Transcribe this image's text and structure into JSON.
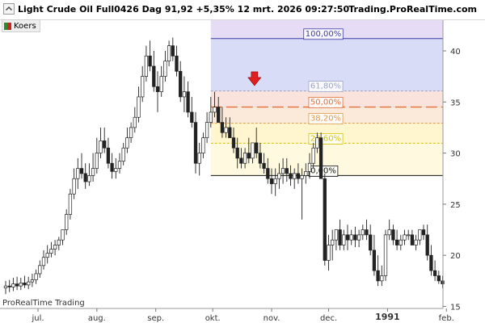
{
  "header": {
    "title": "Light Crude Oil Full0426 Dag 91,92 +5,35% 12 mrt. 2026 09:27:50",
    "brand": "Trading.ProRealTime.com",
    "legend_label": "Koers"
  },
  "footer": {
    "brand": "ProRealTime Trading"
  },
  "colors": {
    "up": "#2e8b2e",
    "down": "#cc2222",
    "neutral": "#222222",
    "f100": "#3b3ba8",
    "f618": "#9aa3c9",
    "f50": "#e0703a",
    "f382": "#e09a4a",
    "f236": "#d4c200",
    "f0": "#111111",
    "arrow": "#e02020"
  },
  "chart_data": {
    "type": "candlestick",
    "title": "Light Crude Oil Full0426 Dag 91,92 +5,35% 12 mrt. 2026 09:27:50",
    "ylabel": "",
    "xlabel": "",
    "ylim": [
      14.8,
      43.0
    ],
    "yticks": [
      "15",
      "20",
      "25",
      "30",
      "35",
      "40"
    ],
    "ytick_values": [
      15,
      20,
      25,
      30,
      35,
      40
    ],
    "xticks": [
      "jul.",
      "aug.",
      "sep.",
      "okt.",
      "nov.",
      "dec.",
      "1991",
      "feb."
    ],
    "xtick_days": [
      0,
      31,
      62,
      92,
      123,
      153,
      184,
      215
    ],
    "bold_xtick": "1991",
    "grid": false,
    "fibonacci": {
      "high": 41.2,
      "low": 27.8,
      "start_day": 108,
      "levels": [
        {
          "label": "100,00%",
          "value": 41.2,
          "color_key": "f100"
        },
        {
          "label": "61,80%",
          "value": 36.08,
          "color_key": "f618"
        },
        {
          "label": "50,00%",
          "value": 34.5,
          "color_key": "f50"
        },
        {
          "label": "38,20%",
          "value": 32.92,
          "color_key": "f382"
        },
        {
          "label": "23,60%",
          "value": 30.96,
          "color_key": "f236"
        },
        {
          "label": "0,00%",
          "value": 27.8,
          "color_key": "f0"
        }
      ]
    },
    "marker": {
      "type": "down-arrow",
      "day": 131,
      "value": 37.0
    },
    "series": [
      {
        "days": [
          0,
          2,
          4,
          6,
          8,
          10,
          12,
          14,
          16,
          18,
          20,
          22,
          24,
          26,
          28,
          30,
          32,
          34,
          36,
          38,
          40,
          42,
          44,
          46,
          48,
          50,
          52,
          54,
          56,
          58,
          60,
          62,
          64,
          66,
          68,
          70,
          72,
          74,
          76,
          78,
          80,
          82,
          84,
          86,
          88,
          90,
          92,
          94,
          96,
          98,
          100,
          102,
          104,
          106,
          108,
          110,
          112,
          114,
          116,
          118,
          120,
          122,
          124,
          126,
          128,
          130,
          132,
          134,
          136,
          138,
          140,
          142,
          144,
          146,
          148,
          150,
          152,
          154,
          156,
          158,
          160,
          162,
          164,
          166,
          168,
          170,
          172,
          174,
          176,
          178,
          180,
          182,
          184,
          186,
          188,
          190,
          192,
          194,
          196,
          198,
          200,
          202,
          204,
          206,
          208,
          210,
          212,
          214,
          216,
          218,
          220,
          222,
          224,
          226,
          228,
          230
        ],
        "open": [
          16.8,
          17.0,
          16.9,
          17.2,
          17.0,
          17.3,
          17.1,
          17.4,
          17.6,
          18.2,
          19.0,
          19.8,
          20.2,
          20.6,
          21.0,
          21.5,
          22.5,
          24.0,
          26.0,
          27.5,
          28.5,
          28.0,
          27.2,
          27.8,
          28.5,
          30.0,
          31.2,
          30.5,
          29.0,
          28.2,
          28.5,
          29.2,
          30.5,
          31.5,
          32.5,
          33.5,
          35.5,
          37.5,
          39.5,
          38.5,
          36.5,
          36.0,
          37.5,
          39.0,
          40.5,
          39.5,
          38.0,
          35.5,
          36.0,
          34.0,
          33.0,
          29.0,
          30.0,
          31.5,
          33.0,
          34.0,
          34.5,
          33.0,
          32.0,
          32.5,
          31.5,
          30.5,
          29.5,
          29.0,
          30.0,
          29.5,
          31.0,
          30.0,
          29.0,
          28.5,
          27.5,
          27.0,
          27.5,
          28.0,
          28.5,
          28.0,
          27.5,
          28.0,
          27.5,
          27.8,
          28.2,
          29.0,
          30.5,
          31.5,
          27.5,
          19.5,
          21.0,
          21.5,
          22.5,
          21.0,
          22.0,
          21.5,
          22.0,
          21.5,
          22.0,
          22.5,
          22.0,
          20.5,
          18.5,
          17.5,
          18.0,
          22.0,
          22.5,
          21.5,
          21.0,
          21.5,
          22.0,
          22.0,
          21.0,
          21.5,
          22.5,
          22.0,
          20.0,
          18.5,
          18.0,
          17.5
        ],
        "high": [
          17.5,
          17.6,
          17.8,
          17.9,
          17.8,
          18.0,
          17.9,
          18.2,
          18.6,
          19.5,
          20.5,
          21.0,
          21.3,
          21.5,
          21.8,
          22.5,
          24.5,
          26.5,
          28.5,
          29.5,
          30.0,
          29.0,
          29.0,
          30.0,
          31.5,
          32.5,
          32.5,
          31.5,
          30.0,
          29.5,
          30.0,
          31.0,
          32.5,
          33.0,
          34.5,
          36.5,
          38.5,
          40.5,
          41.0,
          40.0,
          38.0,
          38.5,
          40.0,
          41.0,
          41.3,
          40.5,
          39.0,
          37.5,
          37.0,
          35.5,
          34.0,
          31.0,
          32.0,
          34.0,
          35.5,
          36.0,
          35.5,
          34.5,
          33.5,
          33.5,
          32.5,
          31.5,
          30.5,
          30.5,
          31.5,
          31.0,
          32.5,
          31.0,
          30.0,
          29.5,
          28.5,
          28.5,
          29.0,
          29.5,
          29.5,
          28.8,
          28.5,
          29.0,
          28.5,
          29.0,
          30.0,
          31.0,
          32.0,
          32.0,
          28.0,
          22.0,
          22.5,
          22.5,
          23.5,
          22.5,
          23.0,
          22.5,
          22.8,
          22.5,
          23.0,
          23.5,
          23.0,
          22.0,
          20.0,
          19.0,
          22.5,
          23.5,
          23.0,
          22.5,
          22.0,
          22.5,
          22.5,
          22.5,
          22.0,
          22.5,
          23.0,
          23.0,
          21.0,
          19.5,
          18.5,
          18.0
        ],
        "low": [
          16.2,
          16.4,
          16.5,
          16.6,
          16.6,
          16.8,
          16.7,
          16.9,
          17.2,
          17.8,
          18.6,
          19.2,
          19.8,
          20.0,
          20.5,
          21.0,
          22.0,
          23.5,
          25.5,
          26.5,
          27.5,
          26.5,
          26.8,
          27.2,
          28.0,
          29.5,
          30.0,
          28.5,
          27.5,
          27.5,
          28.0,
          28.8,
          30.0,
          31.0,
          32.0,
          33.0,
          35.0,
          37.0,
          38.0,
          36.0,
          34.0,
          35.5,
          37.0,
          38.5,
          39.0,
          37.5,
          35.0,
          34.0,
          33.5,
          32.5,
          28.0,
          27.8,
          29.5,
          31.0,
          32.5,
          33.5,
          33.0,
          31.5,
          31.5,
          31.5,
          30.0,
          28.5,
          28.5,
          28.5,
          29.0,
          29.0,
          29.5,
          28.5,
          28.0,
          27.0,
          26.0,
          25.8,
          26.5,
          27.0,
          27.2,
          26.8,
          26.5,
          27.0,
          23.5,
          27.0,
          27.5,
          28.5,
          30.0,
          27.5,
          19.0,
          18.5,
          19.5,
          20.5,
          20.5,
          20.5,
          20.5,
          21.0,
          20.8,
          20.8,
          21.5,
          21.5,
          20.0,
          18.0,
          17.0,
          17.0,
          17.5,
          21.5,
          21.0,
          20.5,
          20.5,
          21.0,
          21.5,
          21.0,
          20.5,
          21.0,
          21.5,
          19.5,
          18.0,
          17.5,
          17.2,
          16.8
        ],
        "close": [
          17.0,
          16.9,
          17.2,
          17.0,
          17.3,
          17.1,
          17.4,
          17.6,
          18.2,
          19.0,
          19.8,
          20.2,
          20.6,
          21.0,
          21.5,
          22.5,
          24.0,
          26.0,
          27.5,
          28.5,
          28.0,
          27.2,
          27.8,
          28.5,
          30.0,
          31.2,
          30.5,
          29.0,
          28.2,
          28.5,
          29.2,
          30.5,
          31.5,
          32.5,
          33.5,
          35.5,
          37.5,
          39.5,
          38.5,
          36.5,
          36.0,
          37.5,
          39.0,
          40.5,
          39.5,
          38.0,
          35.5,
          36.0,
          34.0,
          33.0,
          29.0,
          30.0,
          31.5,
          33.0,
          34.0,
          34.5,
          33.0,
          32.0,
          32.5,
          31.5,
          30.5,
          29.5,
          29.0,
          30.0,
          29.5,
          31.0,
          30.0,
          29.0,
          28.5,
          27.5,
          27.0,
          27.5,
          28.0,
          28.5,
          28.0,
          27.5,
          28.0,
          27.5,
          27.8,
          28.2,
          29.0,
          30.5,
          31.5,
          27.5,
          19.5,
          21.0,
          21.5,
          22.5,
          21.0,
          22.0,
          21.5,
          22.0,
          21.5,
          22.0,
          22.5,
          22.0,
          20.5,
          18.5,
          17.5,
          18.0,
          22.0,
          22.5,
          21.5,
          21.0,
          21.5,
          22.0,
          22.0,
          21.0,
          21.5,
          22.5,
          22.0,
          20.0,
          18.5,
          18.0,
          17.5,
          17.2
        ]
      }
    ]
  }
}
